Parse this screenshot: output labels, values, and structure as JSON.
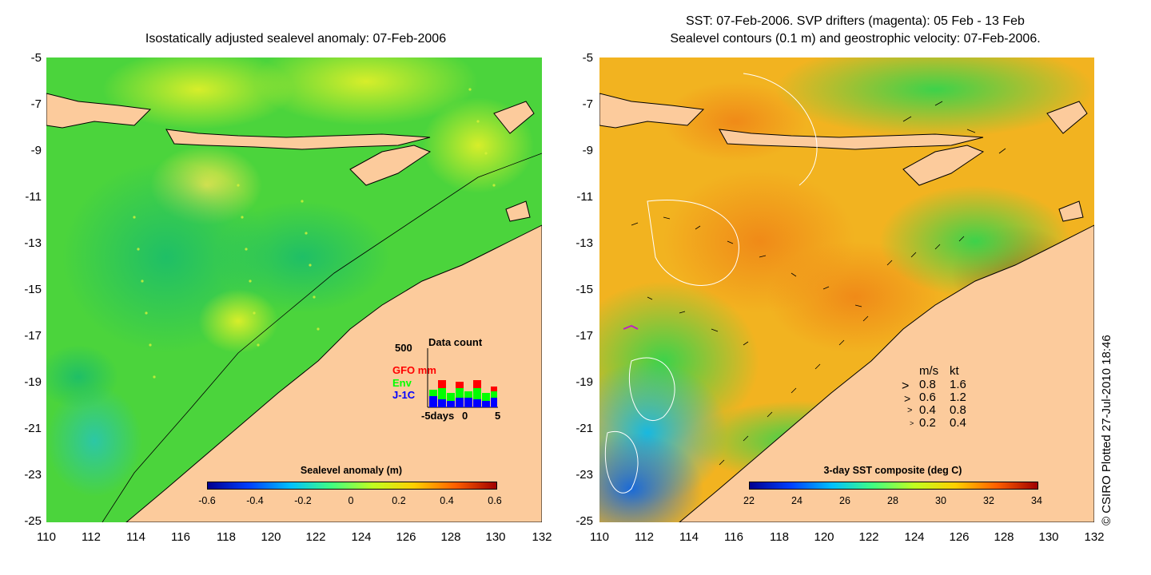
{
  "left_panel": {
    "title": "Isostatically adjusted sealevel anomaly: 07-Feb-2006",
    "colorbar": {
      "title": "Sealevel anomaly (m)",
      "ticks": [
        "-0.6",
        "-0.4",
        "-0.2",
        "0",
        "0.2",
        "0.4",
        "0.6"
      ]
    },
    "data_count": {
      "title": "Data count",
      "ymax_label": "500",
      "series": [
        {
          "name": "GFO mm",
          "color": "#ff0000"
        },
        {
          "name": "Env",
          "color": "#00ff00"
        },
        {
          "name": "J-1C",
          "color": "#0000ff"
        }
      ],
      "x_labels": [
        "-5days",
        "0",
        "5"
      ]
    }
  },
  "right_panel": {
    "title_line1": "SST: 07-Feb-2006. SVP drifters (magenta): 05 Feb - 13 Feb",
    "title_line2": "Sealevel contours (0.1 m) and geostrophic velocity: 07-Feb-2006.",
    "colorbar": {
      "title": "3-day SST composite (deg C)",
      "ticks": [
        "22",
        "24",
        "26",
        "28",
        "30",
        "32",
        "34"
      ]
    },
    "velocity_legend": {
      "header_ms": "m/s",
      "header_kt": "kt",
      "rows": [
        {
          "ms": "0.8",
          "kt": "1.6"
        },
        {
          "ms": "0.6",
          "kt": "1.2"
        },
        {
          "ms": "0.4",
          "kt": "0.8"
        },
        {
          "ms": "0.2",
          "kt": "0.4"
        }
      ]
    }
  },
  "axes": {
    "lat_labels": [
      "-5",
      "-7",
      "-9",
      "-11",
      "-13",
      "-15",
      "-17",
      "-19",
      "-21",
      "-23",
      "-25"
    ],
    "lon_labels": [
      "110",
      "112",
      "114",
      "116",
      "118",
      "120",
      "122",
      "124",
      "126",
      "128",
      "130",
      "132"
    ]
  },
  "copyright": "© CSIRO Plotted 27-Jul-2010 18:46",
  "colors": {
    "land": "#fccb9c",
    "sea_anomaly": "#4fd83a",
    "sst_base": "#f2b320"
  }
}
